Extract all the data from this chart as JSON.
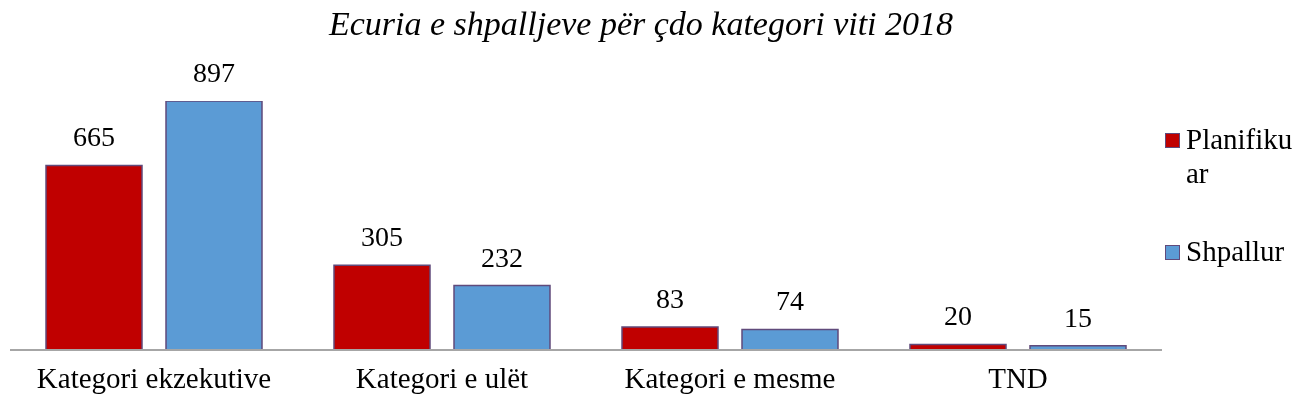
{
  "chart_data": {
    "type": "bar",
    "title": "Ecuria e shpalljeve për çdo kategori viti 2018",
    "categories": [
      "Kategori ekzekutive",
      "Kategori e ulët",
      "Kategori e mesme",
      "TND"
    ],
    "series": [
      {
        "name": "Planifikuar",
        "color": "#c00000",
        "values": [
          665,
          305,
          83,
          20
        ]
      },
      {
        "name": "Shpallur",
        "color": "#5b9bd5",
        "values": [
          897,
          232,
          74,
          15
        ]
      }
    ],
    "data_labels": true,
    "legend": "right",
    "tick_labels": "x"
  }
}
